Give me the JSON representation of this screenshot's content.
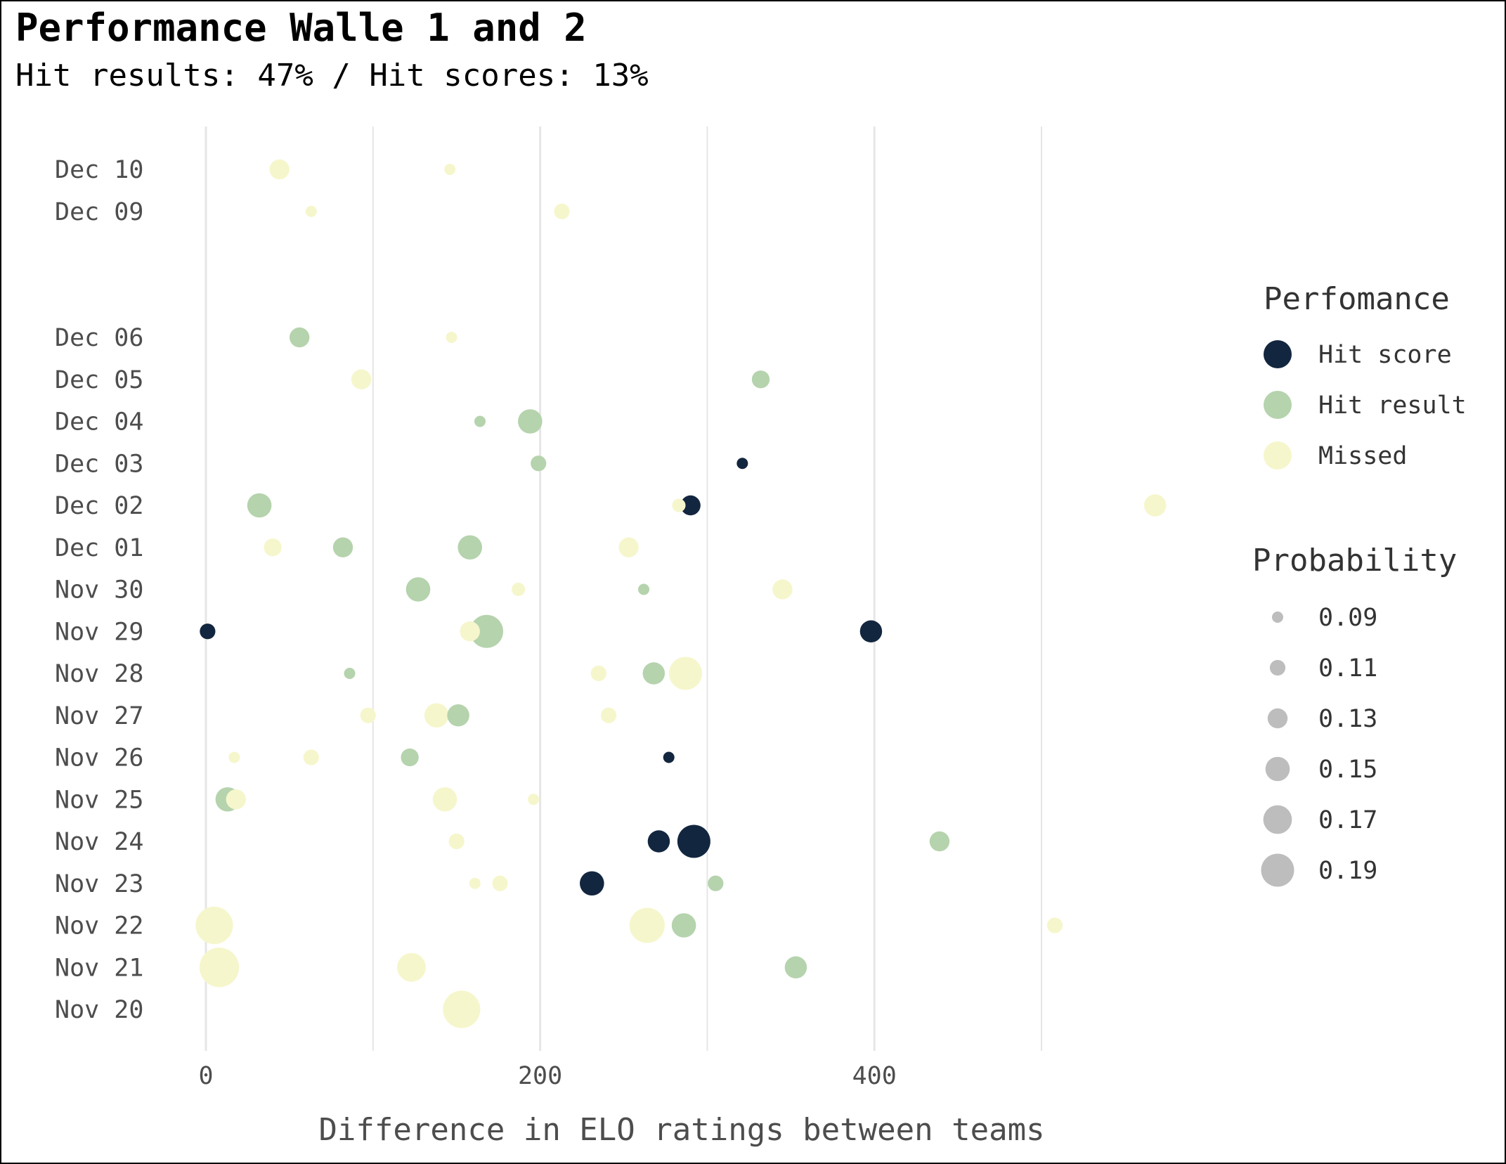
{
  "title": "Performance Walle 1 and 2",
  "subtitle": "Hit results: 47% / Hit scores: 13%",
  "colors": {
    "hit_score": "#13263f",
    "hit_result": "#b5d3ad",
    "missed": "#f6f6cc",
    "size_legend": "#bdbdbd",
    "grid": "#e6e6e6"
  },
  "chart_data": {
    "type": "scatter",
    "title": "Performance Walle 1 and 2",
    "subtitle": "Hit results: 47% / Hit scores: 13%",
    "xlabel": "Difference in ELO ratings between teams",
    "ylabel": "",
    "x_ticks": [
      0,
      200,
      400
    ],
    "x_minor_ticks": [
      100,
      300,
      500
    ],
    "xlim": [
      -90,
      600
    ],
    "y_categories": [
      "Nov 20",
      "Nov 21",
      "Nov 22",
      "Nov 23",
      "Nov 24",
      "Nov 25",
      "Nov 26",
      "Nov 27",
      "Nov 28",
      "Nov 29",
      "Nov 30",
      "Dec 01",
      "Dec 02",
      "Dec 03",
      "Dec 04",
      "Dec 05",
      "Dec 06",
      "Dec 09",
      "Dec 10"
    ],
    "y_type": "date",
    "grid": "vertical",
    "legend_position": "right",
    "color_legend": {
      "title": "Perfomance",
      "entries": [
        {
          "key": "hit_score",
          "label": "Hit score"
        },
        {
          "key": "hit_result",
          "label": "Hit result"
        },
        {
          "key": "missed",
          "label": "Missed"
        }
      ]
    },
    "size_legend": {
      "title": "Probability",
      "values": [
        0.09,
        0.11,
        0.13,
        0.15,
        0.17,
        0.19
      ],
      "labels": [
        "0.09",
        "0.11",
        "0.13",
        "0.15",
        "0.17",
        "0.19"
      ]
    },
    "points": [
      {
        "date": "Dec 10",
        "x": 44,
        "result": "missed",
        "prob": 0.13
      },
      {
        "date": "Dec 10",
        "x": 146,
        "result": "missed",
        "prob": 0.09
      },
      {
        "date": "Dec 09",
        "x": 63,
        "result": "missed",
        "prob": 0.09
      },
      {
        "date": "Dec 09",
        "x": 213,
        "result": "missed",
        "prob": 0.11
      },
      {
        "date": "Dec 06",
        "x": 56,
        "result": "hit_result",
        "prob": 0.13
      },
      {
        "date": "Dec 06",
        "x": 147,
        "result": "missed",
        "prob": 0.09
      },
      {
        "date": "Dec 05",
        "x": 93,
        "result": "missed",
        "prob": 0.13
      },
      {
        "date": "Dec 05",
        "x": 332,
        "result": "hit_result",
        "prob": 0.12
      },
      {
        "date": "Dec 04",
        "x": 164,
        "result": "hit_result",
        "prob": 0.09
      },
      {
        "date": "Dec 04",
        "x": 194,
        "result": "hit_result",
        "prob": 0.15
      },
      {
        "date": "Dec 03",
        "x": 199,
        "result": "hit_result",
        "prob": 0.11
      },
      {
        "date": "Dec 03",
        "x": 321,
        "result": "hit_score",
        "prob": 0.09
      },
      {
        "date": "Dec 02",
        "x": 32,
        "result": "hit_result",
        "prob": 0.15
      },
      {
        "date": "Dec 02",
        "x": 290,
        "result": "hit_score",
        "prob": 0.13
      },
      {
        "date": "Dec 02",
        "x": 283,
        "result": "missed",
        "prob": 0.1
      },
      {
        "date": "Dec 02",
        "x": 568,
        "result": "missed",
        "prob": 0.14
      },
      {
        "date": "Dec 01",
        "x": 40,
        "result": "missed",
        "prob": 0.12
      },
      {
        "date": "Dec 01",
        "x": 82,
        "result": "hit_result",
        "prob": 0.13
      },
      {
        "date": "Dec 01",
        "x": 158,
        "result": "hit_result",
        "prob": 0.15
      },
      {
        "date": "Dec 01",
        "x": 253,
        "result": "missed",
        "prob": 0.13
      },
      {
        "date": "Nov 30",
        "x": 127,
        "result": "hit_result",
        "prob": 0.15
      },
      {
        "date": "Nov 30",
        "x": 187,
        "result": "missed",
        "prob": 0.1
      },
      {
        "date": "Nov 30",
        "x": 262,
        "result": "hit_result",
        "prob": 0.09
      },
      {
        "date": "Nov 30",
        "x": 345,
        "result": "missed",
        "prob": 0.13
      },
      {
        "date": "Nov 29",
        "x": 1,
        "result": "hit_score",
        "prob": 0.11
      },
      {
        "date": "Nov 29",
        "x": 168,
        "result": "hit_result",
        "prob": 0.19
      },
      {
        "date": "Nov 29",
        "x": 158,
        "result": "missed",
        "prob": 0.13
      },
      {
        "date": "Nov 29",
        "x": 398,
        "result": "hit_score",
        "prob": 0.14
      },
      {
        "date": "Nov 28",
        "x": 86,
        "result": "hit_result",
        "prob": 0.09
      },
      {
        "date": "Nov 28",
        "x": 235,
        "result": "missed",
        "prob": 0.11
      },
      {
        "date": "Nov 28",
        "x": 268,
        "result": "hit_result",
        "prob": 0.14
      },
      {
        "date": "Nov 28",
        "x": 287,
        "result": "missed",
        "prob": 0.19
      },
      {
        "date": "Nov 27",
        "x": 97,
        "result": "missed",
        "prob": 0.11
      },
      {
        "date": "Nov 27",
        "x": 138,
        "result": "missed",
        "prob": 0.15
      },
      {
        "date": "Nov 27",
        "x": 151,
        "result": "hit_result",
        "prob": 0.14
      },
      {
        "date": "Nov 27",
        "x": 241,
        "result": "missed",
        "prob": 0.11
      },
      {
        "date": "Nov 26",
        "x": 17,
        "result": "missed",
        "prob": 0.09
      },
      {
        "date": "Nov 26",
        "x": 63,
        "result": "missed",
        "prob": 0.11
      },
      {
        "date": "Nov 26",
        "x": 122,
        "result": "hit_result",
        "prob": 0.12
      },
      {
        "date": "Nov 26",
        "x": 277,
        "result": "hit_score",
        "prob": 0.09
      },
      {
        "date": "Nov 25",
        "x": 13,
        "result": "hit_result",
        "prob": 0.15
      },
      {
        "date": "Nov 25",
        "x": 18,
        "result": "missed",
        "prob": 0.13
      },
      {
        "date": "Nov 25",
        "x": 143,
        "result": "missed",
        "prob": 0.15
      },
      {
        "date": "Nov 25",
        "x": 196,
        "result": "missed",
        "prob": 0.09
      },
      {
        "date": "Nov 24",
        "x": 150,
        "result": "missed",
        "prob": 0.11
      },
      {
        "date": "Nov 24",
        "x": 271,
        "result": "hit_score",
        "prob": 0.14
      },
      {
        "date": "Nov 24",
        "x": 292,
        "result": "hit_score",
        "prob": 0.19
      },
      {
        "date": "Nov 24",
        "x": 439,
        "result": "hit_result",
        "prob": 0.13
      },
      {
        "date": "Nov 23",
        "x": 161,
        "result": "missed",
        "prob": 0.09
      },
      {
        "date": "Nov 23",
        "x": 176,
        "result": "missed",
        "prob": 0.11
      },
      {
        "date": "Nov 23",
        "x": 231,
        "result": "hit_score",
        "prob": 0.15
      },
      {
        "date": "Nov 23",
        "x": 305,
        "result": "hit_result",
        "prob": 0.11
      },
      {
        "date": "Nov 22",
        "x": 5,
        "result": "missed",
        "prob": 0.21
      },
      {
        "date": "Nov 22",
        "x": 264,
        "result": "missed",
        "prob": 0.2
      },
      {
        "date": "Nov 22",
        "x": 286,
        "result": "hit_result",
        "prob": 0.15
      },
      {
        "date": "Nov 22",
        "x": 508,
        "result": "missed",
        "prob": 0.11
      },
      {
        "date": "Nov 21",
        "x": 8,
        "result": "missed",
        "prob": 0.22
      },
      {
        "date": "Nov 21",
        "x": 123,
        "result": "missed",
        "prob": 0.17
      },
      {
        "date": "Nov 21",
        "x": 353,
        "result": "hit_result",
        "prob": 0.14
      },
      {
        "date": "Nov 20",
        "x": 153,
        "result": "missed",
        "prob": 0.21
      }
    ]
  }
}
